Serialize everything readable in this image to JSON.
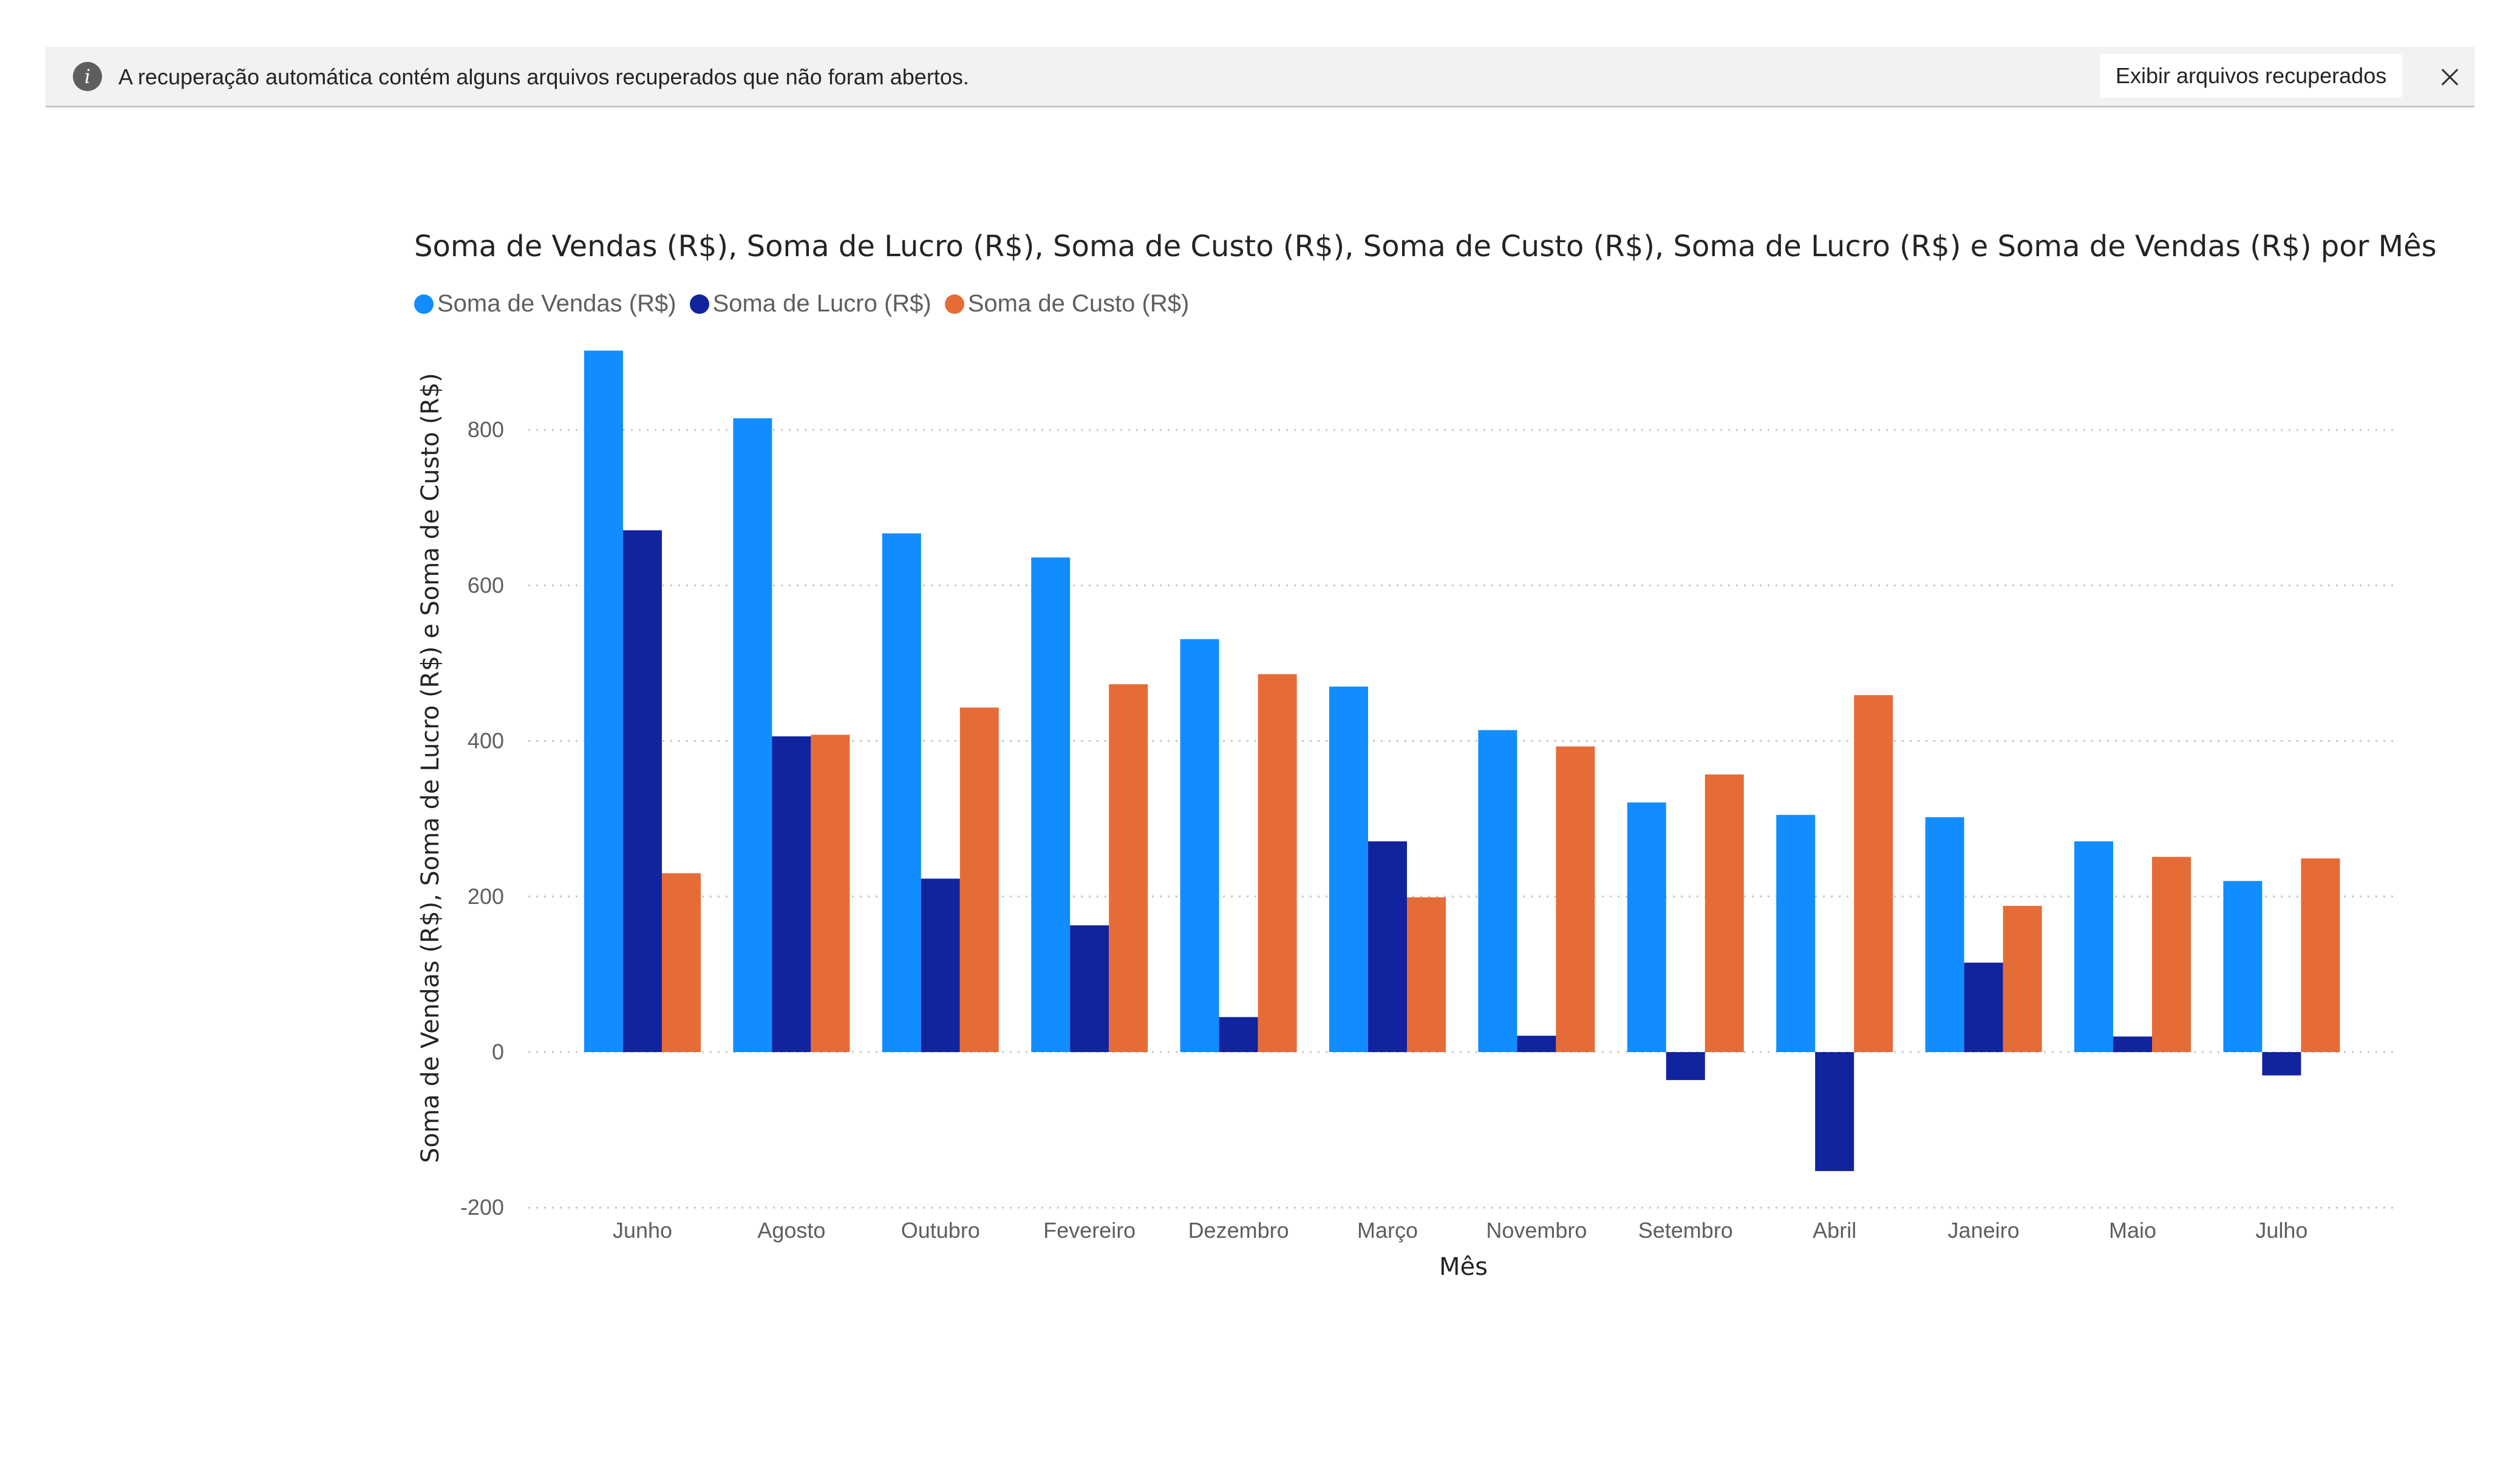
{
  "banner": {
    "icon": "info-icon",
    "message": "A recuperação automática contém alguns arquivos recuperados que não foram abertos.",
    "button_label": "Exibir arquivos recuperados",
    "close_icon": "close-icon"
  },
  "chart_data": {
    "type": "bar",
    "title": "Soma de Vendas (R$), Soma de Lucro (R$), Soma de Custo (R$), Soma de Custo (R$), Soma de Lucro (R$) e Soma de Vendas (R$) por Mês",
    "xlabel": "Mês",
    "ylabel": "Soma de Vendas (R$), Soma de Lucro (R$) e Soma de Custo (R$)",
    "categories": [
      "Junho",
      "Agosto",
      "Outubro",
      "Fevereiro",
      "Dezembro",
      "Março",
      "Novembro",
      "Setembro",
      "Abril",
      "Janeiro",
      "Maio",
      "Julho"
    ],
    "series": [
      {
        "name": "Soma de Vendas (R$)",
        "color": "#118dff",
        "values": [
          902,
          815,
          667,
          636,
          531,
          470,
          414,
          321,
          305,
          302,
          271,
          220
        ]
      },
      {
        "name": "Soma de Lucro (R$)",
        "color": "#12239e",
        "values": [
          671,
          406,
          223,
          163,
          45,
          271,
          21,
          -36,
          -153,
          115,
          20,
          -30
        ]
      },
      {
        "name": "Soma de Custo (R$)",
        "color": "#e66c37",
        "values": [
          230,
          408,
          443,
          473,
          486,
          199,
          393,
          357,
          459,
          188,
          251,
          249
        ]
      }
    ],
    "ylim": [
      -200,
      900
    ],
    "yticks": [
      -200,
      0,
      200,
      400,
      600,
      800
    ],
    "grid": true,
    "legend_position": "top-left"
  }
}
